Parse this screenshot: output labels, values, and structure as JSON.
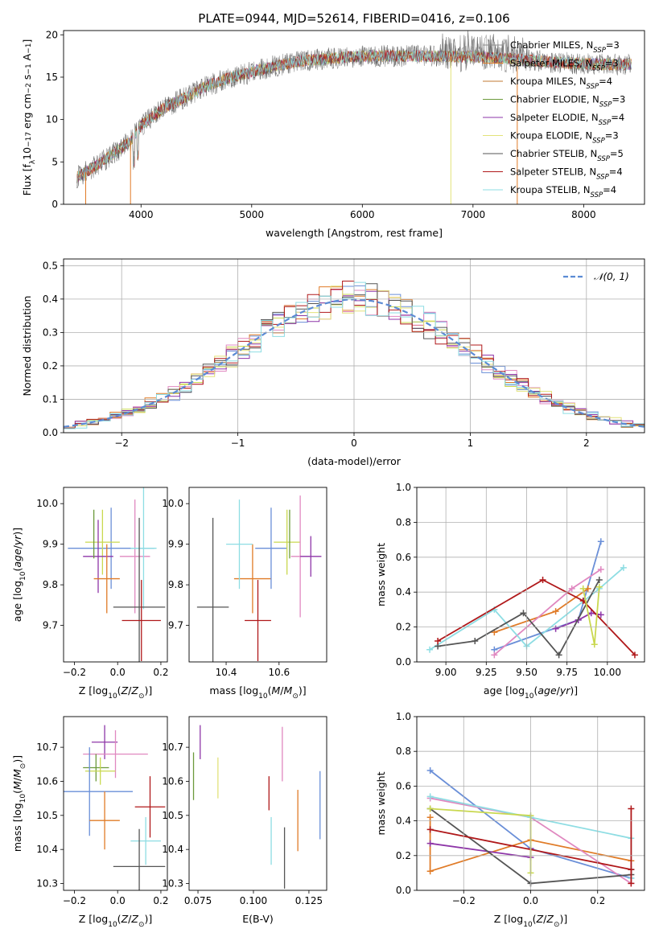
{
  "colors": {
    "blue": "#6a8fd8",
    "orange": "#e07b27",
    "olive": "#c9d84f",
    "green": "#6c9a3c",
    "pink": "#e088c0",
    "purple": "#8e36a8",
    "yellow": "#e3e27a",
    "dark": "#555555",
    "red": "#b0181a",
    "cyan": "#8edde3"
  },
  "chart_data": [
    {
      "id": "spectrum",
      "type": "line",
      "title": "PLATE=0944, MJD=52614, FIBERID=0416, z=0.106",
      "xlabel": "wavelength [Angstrom, rest frame]",
      "ylabel_parts": [
        "Flux [f",
        "λ",
        "10",
        "−17",
        " erg cm",
        "−2",
        " s",
        "−1",
        " A",
        "−1",
        "]"
      ],
      "xlim": [
        3300,
        8550
      ],
      "ylim": [
        0,
        20.5
      ],
      "xticks": [
        4000,
        5000,
        6000,
        7000,
        8000
      ],
      "yticks": [
        0,
        5,
        10,
        15,
        20
      ],
      "continuum": [
        [
          3420,
          3.2
        ],
        [
          3600,
          4.6
        ],
        [
          3750,
          6.0
        ],
        [
          3900,
          7.4
        ],
        [
          4000,
          9.3
        ],
        [
          4200,
          11.3
        ],
        [
          4400,
          12.6
        ],
        [
          4600,
          14.0
        ],
        [
          4800,
          14.9
        ],
        [
          5000,
          15.6
        ],
        [
          5200,
          16.3
        ],
        [
          5500,
          17.0
        ],
        [
          6000,
          17.5
        ],
        [
          6500,
          17.5
        ],
        [
          7000,
          17.4
        ],
        [
          7400,
          17.1
        ],
        [
          7800,
          16.7
        ],
        [
          8200,
          16.5
        ],
        [
          8430,
          16.5
        ]
      ],
      "legend": [
        {
          "name": "Chabrier MILES, N",
          "sub": "SSP",
          "tail": "=3",
          "color": "#888888"
        },
        {
          "name": "Salpeter MILES, N",
          "sub": "SSP",
          "tail": "=3",
          "color": "#e07b27"
        },
        {
          "name": "Kroupa MILES, N",
          "sub": "SSP",
          "tail": "=4",
          "color": "#c07a30"
        },
        {
          "name": "Chabrier ELODIE, N",
          "sub": "SSP",
          "tail": "=3",
          "color": "#6c9a3c"
        },
        {
          "name": "Salpeter ELODIE, N",
          "sub": "SSP",
          "tail": "=4",
          "color": "#8e36a8"
        },
        {
          "name": "Kroupa ELODIE, N",
          "sub": "SSP",
          "tail": "=3",
          "color": "#e3e27a"
        },
        {
          "name": "Chabrier STELIB, N",
          "sub": "SSP",
          "tail": "=5",
          "color": "#555555"
        },
        {
          "name": "Salpeter STELIB, N",
          "sub": "SSP",
          "tail": "=4",
          "color": "#b0181a"
        },
        {
          "name": "Kroupa STELIB, N",
          "sub": "SSP",
          "tail": "=4",
          "color": "#8edde3"
        }
      ]
    },
    {
      "id": "residuals",
      "type": "histogram",
      "xlabel": "(data-model)/error",
      "ylabel": "Normed distribution",
      "xlim": [
        -2.5,
        2.5
      ],
      "ylim": [
        0,
        0.52
      ],
      "xticks": [
        -2,
        -1,
        0,
        1,
        2
      ],
      "yticks": [
        0.0,
        0.1,
        0.2,
        0.3,
        0.4,
        0.5
      ],
      "grid": true,
      "legend": "𝒩(0, 1)",
      "bin_width": 0.1
    },
    {
      "id": "age-vs-Z",
      "type": "scatter",
      "xlabel": "Z [log10(Z/Z⊙)]",
      "ylabel": "age  [log10(age/yr)]",
      "xlim": [
        -0.25,
        0.23
      ],
      "ylim": [
        9.61,
        10.04
      ],
      "xticks": [
        -0.2,
        0.0,
        0.2
      ],
      "yticks": [
        9.7,
        9.8,
        9.9,
        10.0
      ],
      "points": [
        {
          "x": -0.03,
          "y": 9.89,
          "xerr": 0.2,
          "yerr": 0.1,
          "color": "#6a8fd8"
        },
        {
          "x": -0.07,
          "y": 9.905,
          "xerr": 0.08,
          "yerr": 0.08,
          "color": "#c9d84f"
        },
        {
          "x": -0.09,
          "y": 9.87,
          "xerr": 0.07,
          "yerr": 0.09,
          "color": "#8e36a8"
        },
        {
          "x": -0.05,
          "y": 9.815,
          "xerr": 0.06,
          "yerr": 0.085,
          "color": "#e07b27"
        },
        {
          "x": 0.08,
          "y": 9.87,
          "xerr": 0.07,
          "yerr": 0.14,
          "color": "#e088c0"
        },
        {
          "x": 0.12,
          "y": 9.89,
          "xerr": 0.06,
          "yerr": 0.15,
          "color": "#8edde3"
        },
        {
          "x": 0.1,
          "y": 9.745,
          "xerr": 0.12,
          "yerr": 0.22,
          "color": "#555555"
        },
        {
          "x": 0.11,
          "y": 9.712,
          "xerr": 0.09,
          "yerr": 0.1,
          "color": "#b0181a"
        },
        {
          "x": -0.11,
          "y": 9.925,
          "xerr": 0.0,
          "yerr": 0.06,
          "color": "#6c9a3c"
        }
      ]
    },
    {
      "id": "age-vs-mass",
      "type": "scatter",
      "xlabel": "mass [log10(M/M⊙)]",
      "ylabel": "",
      "xlim": [
        10.26,
        10.78
      ],
      "ylim": [
        9.61,
        10.04
      ],
      "xticks": [
        10.4,
        10.6
      ],
      "yticks": [
        9.7,
        9.8,
        9.9,
        10.0
      ],
      "points": [
        {
          "x": 10.35,
          "y": 9.745,
          "xerr": 0.06,
          "yerr": 0.22,
          "color": "#555555"
        },
        {
          "x": 10.5,
          "y": 9.815,
          "xerr": 0.07,
          "yerr": 0.085,
          "color": "#e07b27"
        },
        {
          "x": 10.45,
          "y": 9.9,
          "xerr": 0.05,
          "yerr": 0.11,
          "color": "#8edde3"
        },
        {
          "x": 10.52,
          "y": 9.712,
          "xerr": 0.05,
          "yerr": 0.1,
          "color": "#b0181a"
        },
        {
          "x": 10.57,
          "y": 9.89,
          "xerr": 0.06,
          "yerr": 0.1,
          "color": "#6a8fd8"
        },
        {
          "x": 10.63,
          "y": 9.905,
          "xerr": 0.05,
          "yerr": 0.08,
          "color": "#c9d84f"
        },
        {
          "x": 10.68,
          "y": 9.87,
          "xerr": 0.035,
          "yerr": 0.15,
          "color": "#e088c0"
        },
        {
          "x": 10.72,
          "y": 9.87,
          "xerr": 0.04,
          "yerr": 0.05,
          "color": "#8e36a8"
        },
        {
          "x": 10.64,
          "y": 9.925,
          "xerr": 0.0,
          "yerr": 0.06,
          "color": "#6c9a3c"
        }
      ]
    },
    {
      "id": "mass-weight-vs-age",
      "type": "line",
      "xlabel": "age  [log10(age/yr)]",
      "ylabel": "mass weight",
      "xlim": [
        8.82,
        10.23
      ],
      "ylim": [
        0,
        1
      ],
      "xticks": [
        9.0,
        9.25,
        9.5,
        9.75,
        10.0
      ],
      "yticks": [
        0.0,
        0.2,
        0.4,
        0.6,
        0.8,
        1.0
      ],
      "grid": true,
      "series": [
        {
          "color": "#6a8fd8",
          "points": [
            [
              9.3,
              0.07
            ],
            [
              9.82,
              0.24
            ],
            [
              9.96,
              0.69
            ]
          ]
        },
        {
          "color": "#e07b27",
          "points": [
            [
              9.3,
              0.17
            ],
            [
              9.68,
              0.29
            ],
            [
              9.88,
              0.42
            ]
          ]
        },
        {
          "color": "#8e36a8",
          "points": [
            [
              9.68,
              0.19
            ],
            [
              9.82,
              0.24
            ],
            [
              9.9,
              0.28
            ],
            [
              9.96,
              0.27
            ]
          ]
        },
        {
          "color": "#e088c0",
          "points": [
            [
              9.3,
              0.04
            ],
            [
              9.78,
              0.42
            ],
            [
              9.96,
              0.53
            ]
          ]
        },
        {
          "color": "#8edde3",
          "points": [
            [
              8.9,
              0.07
            ],
            [
              9.3,
              0.3
            ],
            [
              9.5,
              0.09
            ],
            [
              9.95,
              0.42
            ],
            [
              10.1,
              0.54
            ]
          ]
        },
        {
          "color": "#555555",
          "points": [
            [
              8.95,
              0.09
            ],
            [
              9.18,
              0.12
            ],
            [
              9.48,
              0.28
            ],
            [
              9.7,
              0.04
            ],
            [
              9.95,
              0.47
            ]
          ]
        },
        {
          "color": "#b0181a",
          "points": [
            [
              8.95,
              0.12
            ],
            [
              9.6,
              0.47
            ],
            [
              9.85,
              0.35
            ],
            [
              10.17,
              0.04
            ]
          ]
        },
        {
          "color": "#c9d84f",
          "points": [
            [
              9.85,
              0.42
            ],
            [
              9.92,
              0.1
            ],
            [
              9.95,
              0.43
            ]
          ]
        }
      ]
    },
    {
      "id": "mass-vs-Z",
      "type": "scatter",
      "xlabel": "Z [log10(Z/Z⊙)]",
      "ylabel": "mass [log10(M/M⊙)]",
      "xlim": [
        -0.25,
        0.23
      ],
      "ylim": [
        10.28,
        10.79
      ],
      "xticks": [
        -0.2,
        0.0,
        0.2
      ],
      "yticks": [
        10.3,
        10.4,
        10.5,
        10.6,
        10.7
      ],
      "points": [
        {
          "x": -0.06,
          "y": 10.715,
          "xerr": 0.06,
          "yerr": 0.05,
          "color": "#8e36a8"
        },
        {
          "x": -0.01,
          "y": 10.68,
          "xerr": 0.15,
          "yerr": 0.07,
          "color": "#e088c0"
        },
        {
          "x": -0.1,
          "y": 10.64,
          "xerr": 0.06,
          "yerr": 0.04,
          "color": "#6c9a3c"
        },
        {
          "x": -0.08,
          "y": 10.63,
          "xerr": 0.07,
          "yerr": 0.04,
          "color": "#c9d84f"
        },
        {
          "x": -0.13,
          "y": 10.57,
          "xerr": 0.2,
          "yerr": 0.13,
          "color": "#6a8fd8"
        },
        {
          "x": 0.15,
          "y": 10.525,
          "xerr": 0.07,
          "yerr": 0.09,
          "color": "#b0181a"
        },
        {
          "x": -0.06,
          "y": 10.485,
          "xerr": 0.07,
          "yerr": 0.085,
          "color": "#e07b27"
        },
        {
          "x": 0.13,
          "y": 10.425,
          "xerr": 0.07,
          "yerr": 0.07,
          "color": "#8edde3"
        },
        {
          "x": 0.1,
          "y": 10.35,
          "xerr": 0.12,
          "yerr": 0.11,
          "color": "#555555"
        }
      ]
    },
    {
      "id": "mass-vs-EBV",
      "type": "scatter",
      "xlabel": "E(B-V)",
      "ylabel": "",
      "xlim": [
        0.071,
        0.133
      ],
      "ylim": [
        10.28,
        10.79
      ],
      "xticks": [
        0.075,
        0.1,
        0.125
      ],
      "yticks": [
        10.3,
        10.4,
        10.5,
        10.6,
        10.7
      ],
      "points": [
        {
          "x": 0.073,
          "y": 10.615,
          "yerr": 0.07,
          "color": "#6c9a3c"
        },
        {
          "x": 0.076,
          "y": 10.715,
          "yerr": 0.05,
          "color": "#8e36a8"
        },
        {
          "x": 0.084,
          "y": 10.61,
          "yerr": 0.06,
          "color": "#e3e27a"
        },
        {
          "x": 0.107,
          "y": 10.565,
          "yerr": 0.05,
          "color": "#b0181a"
        },
        {
          "x": 0.108,
          "y": 10.425,
          "yerr": 0.07,
          "color": "#8edde3"
        },
        {
          "x": 0.113,
          "y": 10.68,
          "yerr": 0.08,
          "color": "#e088c0"
        },
        {
          "x": 0.114,
          "y": 10.375,
          "yerr": 0.09,
          "color": "#555555"
        },
        {
          "x": 0.12,
          "y": 10.485,
          "yerr": 0.09,
          "color": "#e07b27"
        },
        {
          "x": 0.13,
          "y": 10.53,
          "yerr": 0.1,
          "color": "#6a8fd8"
        }
      ]
    },
    {
      "id": "mass-weight-vs-Z",
      "type": "line",
      "xlabel": "Z [log10(Z/Z⊙)]",
      "ylabel": "mass weight",
      "xlim": [
        -0.34,
        0.34
      ],
      "ylim": [
        0,
        1
      ],
      "xticks": [
        -0.2,
        0.0,
        0.2
      ],
      "yticks": [
        0.0,
        0.2,
        0.4,
        0.6,
        0.8,
        1.0
      ],
      "grid": true,
      "series": [
        {
          "color": "#6a8fd8",
          "points": [
            [
              -0.3,
              0.69
            ],
            [
              0.0,
              0.24
            ],
            [
              0.3,
              0.07
            ]
          ]
        },
        {
          "color": "#e07b27",
          "points": [
            [
              -0.3,
              0.42
            ],
            [
              -0.3,
              0.11
            ],
            [
              0.0,
              0.29
            ],
            [
              0.3,
              0.17
            ]
          ]
        },
        {
          "color": "#8e36a8",
          "points": [
            [
              -0.3,
              0.27
            ],
            [
              0.0,
              0.19
            ],
            [
              0.0,
              0.24
            ]
          ]
        },
        {
          "color": "#e088c0",
          "points": [
            [
              -0.3,
              0.53
            ],
            [
              0.0,
              0.42
            ],
            [
              0.3,
              0.04
            ]
          ]
        },
        {
          "color": "#8edde3",
          "points": [
            [
              -0.3,
              0.54
            ],
            [
              0.0,
              0.42
            ],
            [
              0.3,
              0.3
            ],
            [
              0.3,
              0.07
            ]
          ]
        },
        {
          "color": "#555555",
          "points": [
            [
              -0.3,
              0.47
            ],
            [
              0.0,
              0.04
            ],
            [
              0.3,
              0.09
            ],
            [
              0.3,
              0.12
            ]
          ]
        },
        {
          "color": "#b0181a",
          "points": [
            [
              -0.3,
              0.35
            ],
            [
              0.3,
              0.12
            ],
            [
              0.3,
              0.47
            ],
            [
              0.3,
              0.04
            ]
          ]
        },
        {
          "color": "#c9d84f",
          "points": [
            [
              -0.3,
              0.47
            ],
            [
              0.0,
              0.43
            ],
            [
              0.0,
              0.1
            ]
          ]
        }
      ]
    }
  ]
}
